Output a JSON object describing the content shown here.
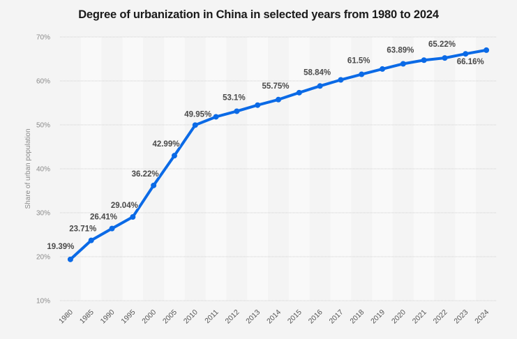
{
  "chart_data": {
    "type": "line",
    "title": "Degree of urbanization in China in selected years from 1980 to 2024",
    "xlabel": "",
    "ylabel": "Share of urban population",
    "categories": [
      "1980",
      "1985",
      "1990",
      "1995",
      "2000",
      "2005",
      "2010",
      "2011",
      "2012",
      "2013",
      "2014",
      "2015",
      "2016",
      "2017",
      "2018",
      "2019",
      "2020",
      "2021",
      "2022",
      "2023",
      "2024"
    ],
    "series": [
      {
        "name": "Share of urban population",
        "color": "#0b6ae6",
        "values": [
          19.39,
          23.71,
          26.41,
          29.04,
          36.22,
          42.99,
          49.95,
          51.83,
          53.1,
          54.49,
          55.75,
          57.33,
          58.84,
          60.24,
          61.5,
          62.71,
          63.89,
          64.72,
          65.22,
          66.16,
          67.0
        ],
        "data_labels": [
          "19.39%",
          "23.71%",
          "26.41%",
          "29.04%",
          "36.22%",
          "42.99%",
          "49.95%",
          "",
          "53.1%",
          "",
          "55.75%",
          "",
          "58.84%",
          "",
          "61.5%",
          "",
          "63.89%",
          "",
          "65.22%",
          "66.16%",
          ""
        ]
      }
    ],
    "ylim": [
      10,
      70
    ],
    "yticks": [
      10,
      20,
      30,
      40,
      50,
      60,
      70
    ],
    "ytick_labels": [
      "10%",
      "20%",
      "30%",
      "40%",
      "50%",
      "60%",
      "70%"
    ],
    "grid": true,
    "legend": "none"
  }
}
